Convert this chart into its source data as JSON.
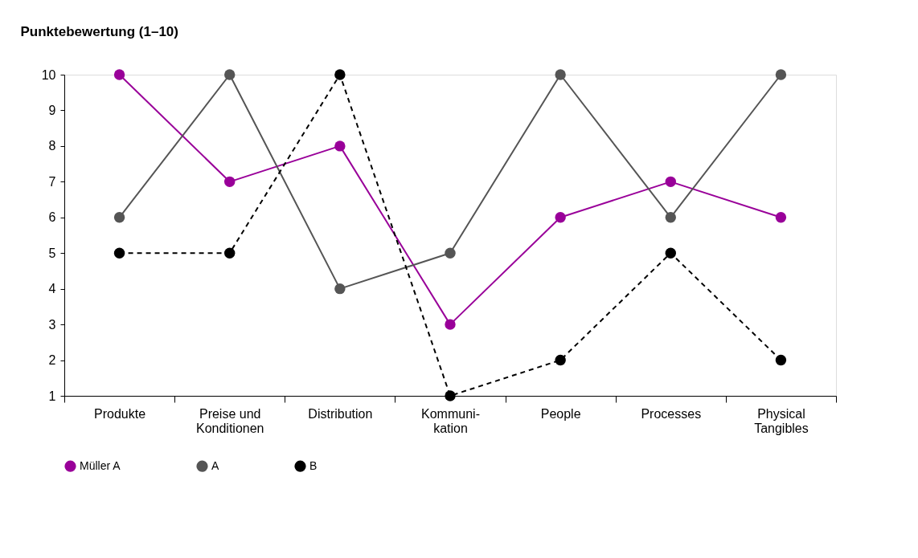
{
  "chart_data": {
    "type": "line",
    "ylabel": "Punktebewertung (1–10)",
    "categories": [
      "Produkte",
      "Preise und\nKonditionen",
      "Distribution",
      "Kommuni-\nkation",
      "People",
      "Processes",
      "Physical\nTangibles"
    ],
    "ylim": [
      1,
      10
    ],
    "yticks": [
      1,
      2,
      3,
      4,
      5,
      6,
      7,
      8,
      9,
      10
    ],
    "grid": false,
    "legend": "bottom left",
    "marker": "circle",
    "series": [
      {
        "name": "Müller A",
        "color": "#990099",
        "line_style": "solid",
        "values": [
          10,
          7,
          8,
          3,
          6,
          7,
          6
        ]
      },
      {
        "name": "A",
        "color": "#555555",
        "line_style": "solid",
        "values": [
          6,
          10,
          4,
          5,
          10,
          6,
          10
        ]
      },
      {
        "name": "B",
        "color": "#000000",
        "line_style": "dashed",
        "values": [
          5,
          5,
          10,
          1,
          2,
          5,
          2
        ]
      }
    ]
  }
}
